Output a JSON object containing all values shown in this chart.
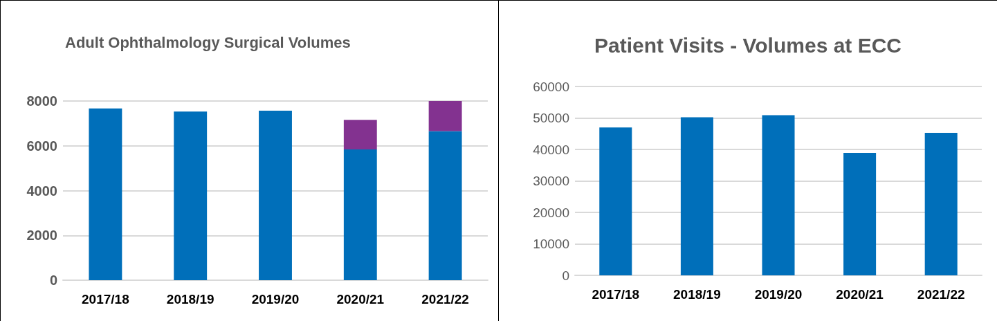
{
  "chart_data": [
    {
      "type": "bar",
      "title": "Adult Ophthalmology Surgical Volumes",
      "categories": [
        "2017/18",
        "2018/19",
        "2019/20",
        "2020/21",
        "2021/22"
      ],
      "stacked": true,
      "series": [
        {
          "color": "#006fba",
          "values": [
            7670,
            7530,
            7570,
            5840,
            6660
          ]
        },
        {
          "color": "#833290",
          "values": [
            null,
            null,
            null,
            1320,
            1340
          ]
        }
      ],
      "ylim": [
        0,
        8000
      ],
      "yticks": [
        0,
        2000,
        4000,
        6000,
        8000
      ],
      "grid": "y"
    },
    {
      "type": "bar",
      "title": "Patient Visits - Volumes at ECC",
      "categories": [
        "2017/18",
        "2018/19",
        "2019/20",
        "2020/21",
        "2021/22"
      ],
      "series": [
        {
          "color": "#006fba",
          "values": [
            47000,
            50200,
            50900,
            38900,
            45300
          ]
        }
      ],
      "ylim": [
        0,
        60000
      ],
      "yticks": [
        0,
        10000,
        20000,
        30000,
        40000,
        50000,
        60000
      ],
      "grid": "y"
    }
  ]
}
